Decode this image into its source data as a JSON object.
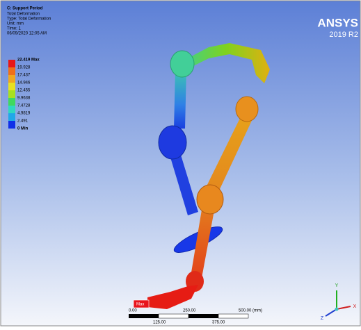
{
  "header": {
    "title": "C: Support Period",
    "lines": [
      "Total Deformation",
      "Type: Total Deformation",
      "Unit: mm",
      "Time: 1",
      "06/09/2020 12:05 AM"
    ]
  },
  "legend": {
    "labels": [
      "22.419 Max",
      "19.928",
      "17.437",
      "14.946",
      "12.455",
      "9.9638",
      "7.4728",
      "4.9819",
      "2.491",
      "0 Min"
    ]
  },
  "brand": {
    "name": "ANSYS",
    "version": "2019 R2"
  },
  "probe": {
    "label": "Max"
  },
  "scale_bar": {
    "top_labels": [
      "0.00",
      "250.00",
      "500.00 (mm)"
    ],
    "bottom_labels": [
      "125.00",
      "375.00"
    ]
  },
  "triad": {
    "x": "X",
    "y": "Y",
    "z": "Z"
  }
}
